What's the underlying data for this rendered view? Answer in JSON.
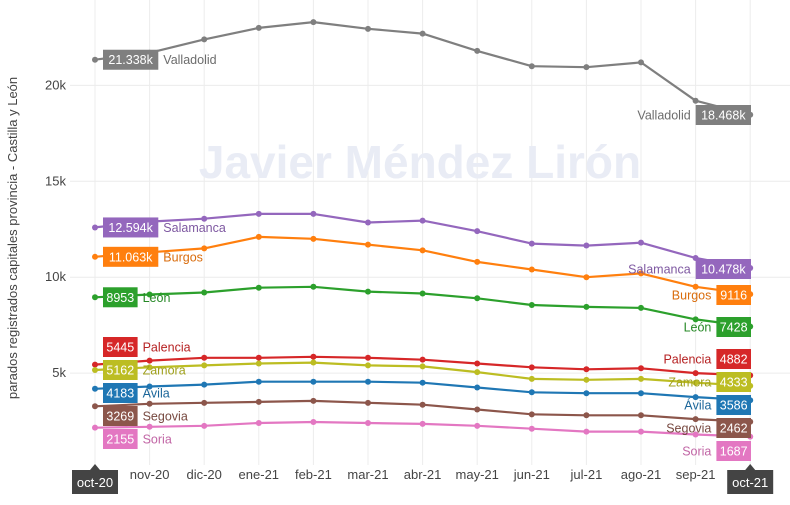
{
  "chart_data": {
    "type": "line",
    "ylabel": "parados registrados capitales provincia - Castilla y León",
    "xlabel": "",
    "ylim": [
      0,
      23800
    ],
    "y_ticks": [
      {
        "value": 5000,
        "label": "5k"
      },
      {
        "value": 10000,
        "label": "10k"
      },
      {
        "value": 15000,
        "label": "15k"
      },
      {
        "value": 20000,
        "label": "20k"
      }
    ],
    "grid": true,
    "watermark": "Javier Méndez Lirón",
    "categories": [
      "oct-20",
      "nov-20",
      "dic-20",
      "ene-21",
      "feb-21",
      "mar-21",
      "abr-21",
      "may-21",
      "jun-21",
      "jul-21",
      "ago-21",
      "sep-21",
      "oct-21"
    ],
    "series": [
      {
        "name": "Valladolid",
        "color": "#7f7f7f",
        "values": [
          21338,
          21700,
          22400,
          23000,
          23300,
          22950,
          22700,
          21800,
          21000,
          20950,
          21200,
          19200,
          18468
        ],
        "start_label": "21.338k",
        "end_label": "18.468k"
      },
      {
        "name": "Salamanca",
        "color": "#9467bd",
        "values": [
          12594,
          12900,
          13050,
          13300,
          13300,
          12850,
          12950,
          12400,
          11750,
          11650,
          11800,
          11000,
          10478
        ],
        "start_label": "12.594k",
        "end_label": "10.478k"
      },
      {
        "name": "Burgos",
        "color": "#ff7f0e",
        "values": [
          11063,
          11300,
          11500,
          12100,
          12000,
          11700,
          11400,
          10800,
          10400,
          10000,
          10200,
          9500,
          9116
        ],
        "start_label": "11.063k",
        "end_label": "9116"
      },
      {
        "name": "León",
        "color": "#2ca02c",
        "values": [
          8953,
          9100,
          9200,
          9450,
          9500,
          9250,
          9150,
          8900,
          8550,
          8450,
          8400,
          7800,
          7428
        ],
        "start_label": "8953",
        "end_label": "7428"
      },
      {
        "name": "Palencia",
        "color": "#d62728",
        "values": [
          5445,
          5650,
          5800,
          5800,
          5850,
          5800,
          5700,
          5500,
          5300,
          5200,
          5250,
          5000,
          4882
        ],
        "start_label": "5445",
        "end_label": "4882"
      },
      {
        "name": "Zamora",
        "color": "#bcbd22",
        "values": [
          5162,
          5300,
          5400,
          5500,
          5550,
          5400,
          5350,
          5050,
          4700,
          4650,
          4700,
          4500,
          4333
        ],
        "start_label": "5162",
        "end_label": "4333"
      },
      {
        "name": "Ávila",
        "color": "#1f77b4",
        "values": [
          4183,
          4300,
          4400,
          4550,
          4550,
          4550,
          4500,
          4250,
          4000,
          3950,
          3950,
          3750,
          3586
        ],
        "start_label": "4183",
        "end_label": "3586"
      },
      {
        "name": "Segovia",
        "color": "#8c564b",
        "values": [
          3269,
          3400,
          3450,
          3500,
          3550,
          3450,
          3350,
          3100,
          2850,
          2800,
          2800,
          2600,
          2462
        ],
        "start_label": "3269",
        "end_label": "2462"
      },
      {
        "name": "Soria",
        "color": "#e377c2",
        "values": [
          2155,
          2200,
          2250,
          2400,
          2450,
          2400,
          2350,
          2250,
          2100,
          1950,
          1950,
          1800,
          1687
        ],
        "start_label": "2155",
        "end_label": "1687"
      }
    ]
  }
}
